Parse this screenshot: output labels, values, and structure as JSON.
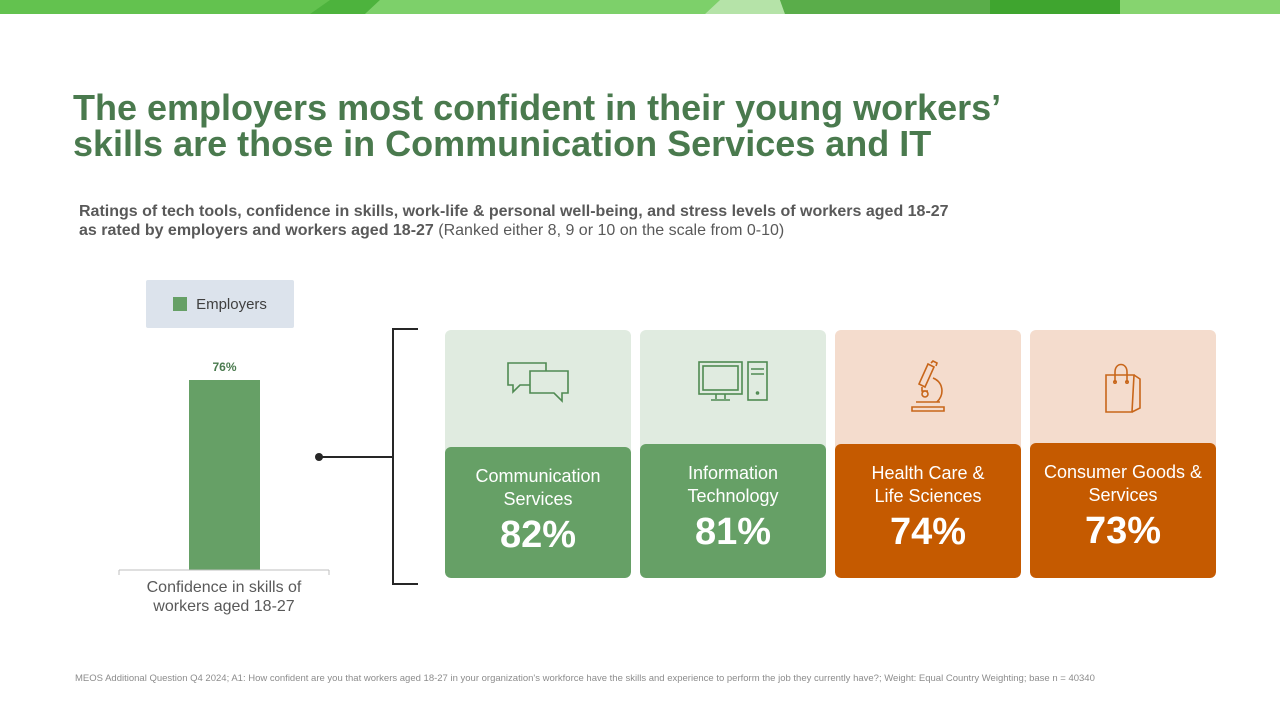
{
  "title_lines": [
    "The employers most confident in their young workers’",
    "skills are those in Communication Services and IT"
  ],
  "subtitle": {
    "bold_line1": "Ratings of tech tools, confidence in skills, work-life & personal well-being, and stress levels of workers aged 18-27",
    "bold_line2": "as rated by employers and workers aged 18-27",
    "note": " (Ranked either 8, 9 or 10 on the scale from 0-10)"
  },
  "colors": {
    "green": "#66a066",
    "green_light": "#e0ebe0",
    "orange": "#c55a00",
    "orange_light": "#f4dccd",
    "title_green": "#4a7a4e"
  },
  "chart_data": {
    "type": "bar",
    "categories": [
      "Confidence in skills of workers aged 18-27"
    ],
    "series": [
      {
        "name": "Employers",
        "values": [
          76
        ]
      }
    ],
    "data_labels": [
      "76%"
    ],
    "ylim": [
      0,
      100
    ],
    "legend": "top-left",
    "grid": false
  },
  "legend": {
    "label": "Employers"
  },
  "xcat_lines": [
    "Confidence in skills of",
    "workers aged 18-27"
  ],
  "sectors": [
    {
      "label_lines": [
        "Communication",
        "Services"
      ],
      "value": "82%",
      "icon": "chat-bubbles-icon",
      "theme": "green"
    },
    {
      "label_lines": [
        "Information",
        "Technology"
      ],
      "value": "81%",
      "icon": "computer-icon",
      "theme": "green"
    },
    {
      "label_lines": [
        "Health Care &",
        "Life Sciences"
      ],
      "value": "74%",
      "icon": "microscope-icon",
      "theme": "orange"
    },
    {
      "label_lines": [
        "Consumer Goods &",
        "Services"
      ],
      "value": "73%",
      "icon": "shopping-bag-icon",
      "theme": "orange"
    }
  ],
  "footnote": "MEOS  Additional Question Q4 2024; A1: How confident are you that workers aged 18-27 in your organization's workforce have the skills and experience to perform the job they currently have?; Weight: Equal  Country Weighting; base n = 40340"
}
